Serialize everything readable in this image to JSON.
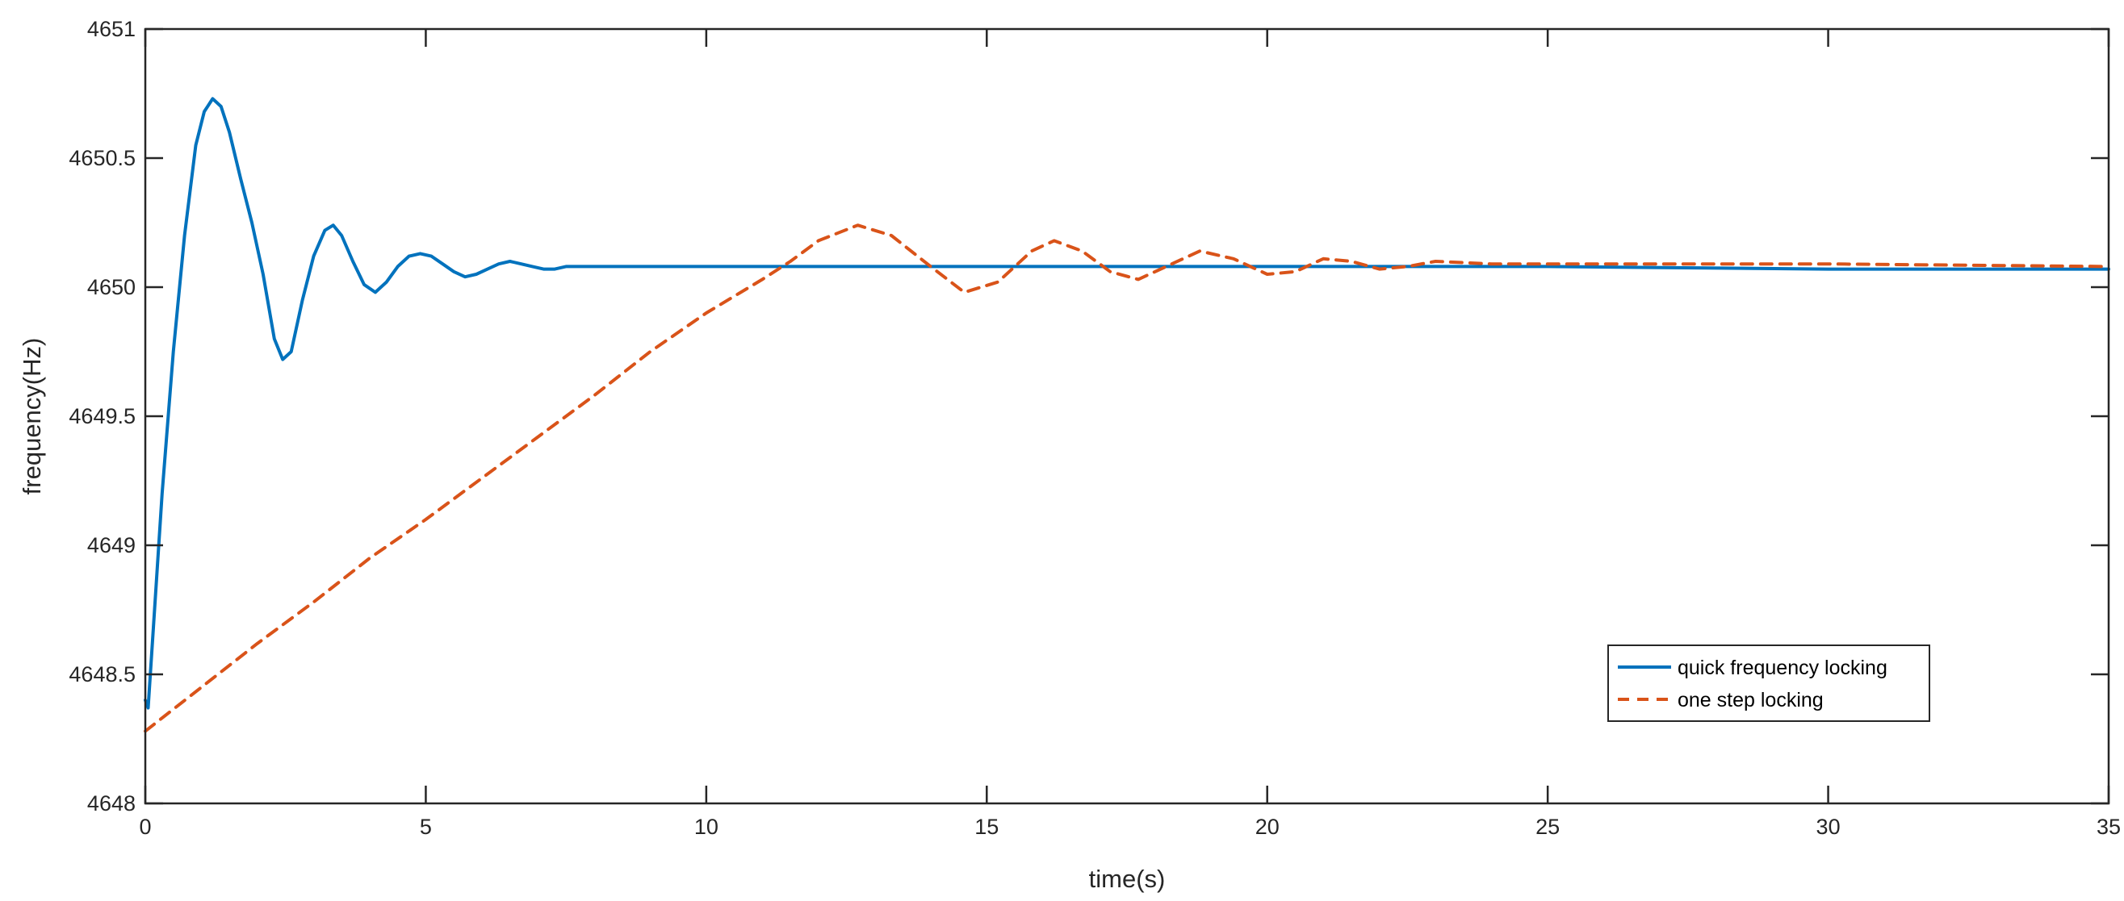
{
  "chart_data": {
    "type": "line",
    "xlabel": "time(s)",
    "ylabel": "frequency(Hz)",
    "xlim": [
      0,
      35
    ],
    "ylim": [
      4648,
      4651
    ],
    "xticks": [
      "0",
      "5",
      "10",
      "15",
      "20",
      "25",
      "30",
      "35"
    ],
    "yticks": [
      "4648",
      "4648.5",
      "4649",
      "4649.5",
      "4650",
      "4650.5",
      "4651"
    ],
    "grid": false,
    "legend_position": "bottom-right",
    "series": [
      {
        "name": "quick frequency locking",
        "color": "#0072BD",
        "style": "solid",
        "x": [
          0,
          0.05,
          0.15,
          0.3,
          0.5,
          0.7,
          0.9,
          1.05,
          1.2,
          1.35,
          1.5,
          1.7,
          1.9,
          2.1,
          2.3,
          2.45,
          2.6,
          2.8,
          3.0,
          3.2,
          3.35,
          3.5,
          3.7,
          3.9,
          4.1,
          4.3,
          4.5,
          4.7,
          4.9,
          5.1,
          5.3,
          5.5,
          5.7,
          5.9,
          6.1,
          6.3,
          6.5,
          6.7,
          6.9,
          7.1,
          7.3,
          7.5,
          8,
          9,
          10,
          12,
          15,
          20,
          25,
          30,
          35
        ],
        "y": [
          4648.4,
          4648.37,
          4648.7,
          4649.2,
          4649.75,
          4650.2,
          4650.55,
          4650.68,
          4650.73,
          4650.7,
          4650.6,
          4650.42,
          4650.25,
          4650.05,
          4649.8,
          4649.72,
          4649.75,
          4649.95,
          4650.12,
          4650.22,
          4650.24,
          4650.2,
          4650.1,
          4650.01,
          4649.98,
          4650.02,
          4650.08,
          4650.12,
          4650.13,
          4650.12,
          4650.09,
          4650.06,
          4650.04,
          4650.05,
          4650.07,
          4650.09,
          4650.1,
          4650.09,
          4650.08,
          4650.07,
          4650.07,
          4650.08,
          4650.08,
          4650.08,
          4650.08,
          4650.08,
          4650.08,
          4650.08,
          4650.08,
          4650.07,
          4650.07
        ]
      },
      {
        "name": "one step locking",
        "color": "#D95319",
        "style": "dashed",
        "x": [
          0,
          1,
          2,
          3,
          4,
          5,
          6,
          7,
          8,
          9,
          10,
          11,
          11.5,
          12,
          12.7,
          13.3,
          14,
          14.6,
          15.2,
          15.8,
          16.2,
          16.7,
          17.2,
          17.7,
          18.2,
          18.8,
          19.4,
          20,
          20.5,
          21,
          21.5,
          22,
          22.5,
          23,
          24,
          25,
          30,
          35
        ],
        "y": [
          4648.28,
          4648.45,
          4648.62,
          4648.78,
          4648.95,
          4649.1,
          4649.26,
          4649.42,
          4649.58,
          4649.75,
          4649.9,
          4650.03,
          4650.1,
          4650.18,
          4650.24,
          4650.2,
          4650.08,
          4649.98,
          4650.02,
          4650.14,
          4650.18,
          4650.14,
          4650.06,
          4650.03,
          4650.08,
          4650.14,
          4650.11,
          4650.05,
          4650.06,
          4650.11,
          4650.1,
          4650.07,
          4650.08,
          4650.1,
          4650.09,
          4650.09,
          4650.09,
          4650.08
        ]
      }
    ]
  }
}
